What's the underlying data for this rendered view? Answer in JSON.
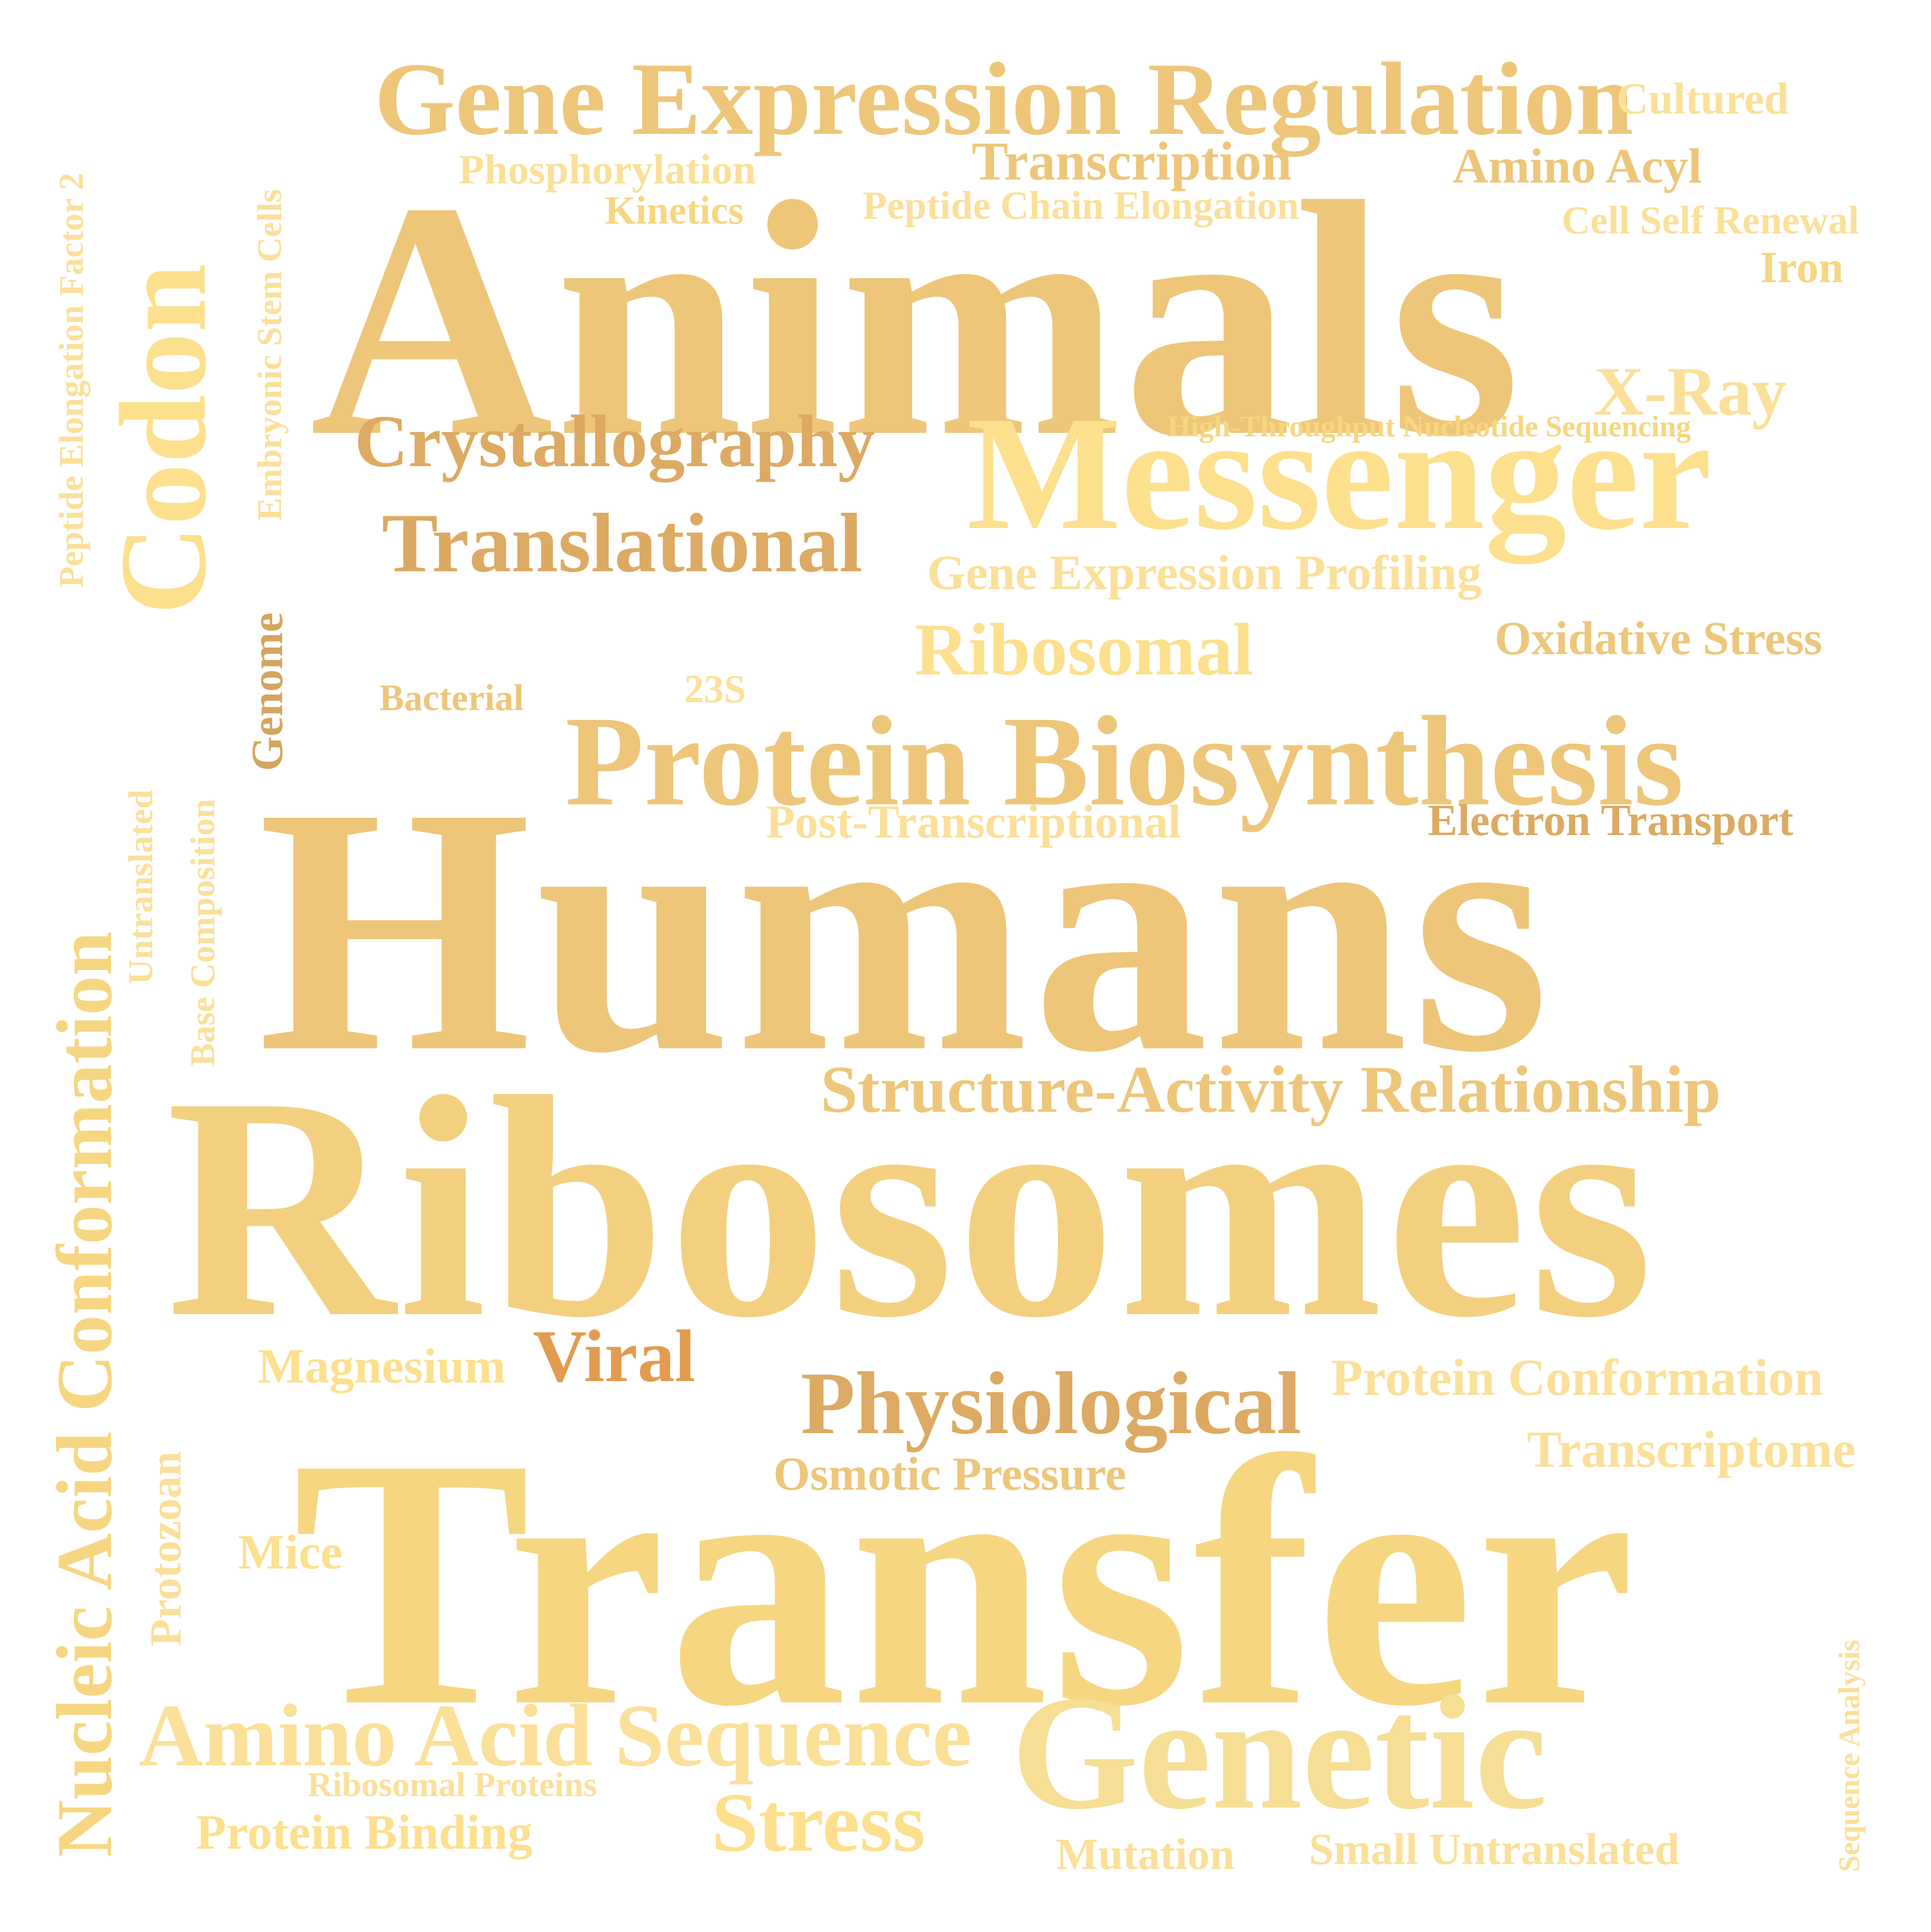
{
  "palette": {
    "tan": "#EDC67A",
    "gold": "#F6D681",
    "yellow": "#FDE08E",
    "light": "#FBE09A",
    "brown": "#DCAA63",
    "orange": "#E29B4F",
    "darkbrown": "#D4A55E"
  },
  "words": [
    {
      "name": "word-gene-expression-regulation",
      "text": "Gene Expression Regulation",
      "color": "#EDC67A"
    },
    {
      "name": "word-cultured",
      "text": "Cultured",
      "color": "#FBE09A"
    },
    {
      "name": "word-transcription",
      "text": "Transcription",
      "color": "#EDC67A"
    },
    {
      "name": "word-phosphorylation",
      "text": "Phosphorylation",
      "color": "#FBE09A"
    },
    {
      "name": "word-amino-acyl",
      "text": "Amino Acyl",
      "color": "#EDC67A"
    },
    {
      "name": "word-kinetics",
      "text": "Kinetics",
      "color": "#F6D681"
    },
    {
      "name": "word-peptide-chain-elongation",
      "text": "Peptide Chain Elongation",
      "color": "#FBE09A"
    },
    {
      "name": "word-cell-self-renewal",
      "text": "Cell Self Renewal",
      "color": "#FBE09A"
    },
    {
      "name": "word-iron",
      "text": "Iron",
      "color": "#F6D681"
    },
    {
      "name": "word-animals",
      "text": "Animals",
      "color": "#EDC67A"
    },
    {
      "name": "word-x-ray",
      "text": "X-Ray",
      "color": "#FBE09A"
    },
    {
      "name": "word-high-throughput-nucleotide-sequencing",
      "text": "High-Throughput Nucleotide Sequencing",
      "color": "#F6D681"
    },
    {
      "name": "word-crystallography",
      "text": "Crystallography",
      "color": "#DCAA63"
    },
    {
      "name": "word-messenger",
      "text": "Messenger",
      "color": "#FDE08E"
    },
    {
      "name": "word-translational",
      "text": "Translational",
      "color": "#DCAA63"
    },
    {
      "name": "word-gene-expression-profiling",
      "text": "Gene Expression Profiling",
      "color": "#FBE09A"
    },
    {
      "name": "word-ribosomal",
      "text": "Ribosomal",
      "color": "#FDE08E"
    },
    {
      "name": "word-oxidative-stress",
      "text": "Oxidative Stress",
      "color": "#EDC67A"
    },
    {
      "name": "word-bacterial",
      "text": "Bacterial",
      "color": "#EDC67A"
    },
    {
      "name": "word-23s",
      "text": "23S",
      "color": "#FBE09A"
    },
    {
      "name": "word-protein-biosynthesis",
      "text": "Protein Biosynthesis",
      "color": "#EDC67A"
    },
    {
      "name": "word-post-transcriptional",
      "text": "Post-Transcriptional",
      "color": "#FBE09A"
    },
    {
      "name": "word-electron-transport",
      "text": "Electron Transport",
      "color": "#DCAA63"
    },
    {
      "name": "word-humans",
      "text": "Humans",
      "color": "#EDC67A"
    },
    {
      "name": "word-structure-activity-relationship",
      "text": "Structure-Activity Relationship",
      "color": "#EDC67A"
    },
    {
      "name": "word-ribosomes",
      "text": "Ribosomes",
      "color": "#F3D080"
    },
    {
      "name": "word-magnesium",
      "text": "Magnesium",
      "color": "#FDE08E"
    },
    {
      "name": "word-viral",
      "text": "Viral",
      "color": "#E29B4F"
    },
    {
      "name": "word-physiological",
      "text": "Physiological",
      "color": "#DCAA63"
    },
    {
      "name": "word-protein-conformation",
      "text": "Protein Conformation",
      "color": "#FBE09A"
    },
    {
      "name": "word-transcriptome",
      "text": "Transcriptome",
      "color": "#FBE09A"
    },
    {
      "name": "word-osmotic-pressure",
      "text": "Osmotic Pressure",
      "color": "#EDC67A"
    },
    {
      "name": "word-transfer",
      "text": "Transfer",
      "color": "#F6D681"
    },
    {
      "name": "word-mice",
      "text": "Mice",
      "color": "#FDE08E"
    },
    {
      "name": "word-amino-acid-sequence",
      "text": "Amino Acid Sequence",
      "color": "#FBE09A"
    },
    {
      "name": "word-genetic",
      "text": "Genetic",
      "color": "#F6DE95"
    },
    {
      "name": "word-ribosomal-proteins",
      "text": "Ribosomal Proteins",
      "color": "#FBE09A"
    },
    {
      "name": "word-protein-binding",
      "text": "Protein Binding",
      "color": "#FDE08E"
    },
    {
      "name": "word-stress",
      "text": "Stress",
      "color": "#FDE08E"
    },
    {
      "name": "word-mutation",
      "text": "Mutation",
      "color": "#FBE09A"
    },
    {
      "name": "word-small-untranslated",
      "text": "Small Untranslated",
      "color": "#FBE09A"
    },
    {
      "name": "word-peptide-elongation-factor-2",
      "text": "Peptide Elongation Factor 2",
      "color": "#FBE09A"
    },
    {
      "name": "word-codon",
      "text": "Codon",
      "color": "#FDE08E"
    },
    {
      "name": "word-embryonic-stem-cells",
      "text": "Embryonic Stem Cells",
      "color": "#FBE09A"
    },
    {
      "name": "word-genome",
      "text": "Genome",
      "color": "#D4A55E"
    },
    {
      "name": "word-nucleic-acid-conformation",
      "text": "Nucleic Acid Conformation",
      "color": "#F6D681"
    },
    {
      "name": "word-untranslated",
      "text": "Untranslated",
      "color": "#FBE09A"
    },
    {
      "name": "word-base-composition",
      "text": "Base Composition",
      "color": "#FBE09A"
    },
    {
      "name": "word-protozoan",
      "text": "Protozoan",
      "color": "#FBE09A"
    },
    {
      "name": "word-sequence-analysis",
      "text": "Sequence Analysis",
      "color": "#FBE09A"
    }
  ]
}
